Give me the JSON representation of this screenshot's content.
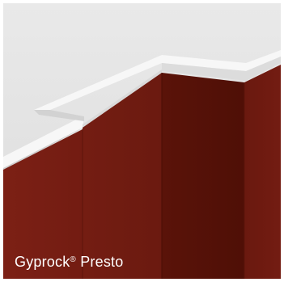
{
  "product": {
    "name": "Gyprock",
    "registered_mark": "®",
    "variant": "Presto"
  },
  "colors": {
    "ceiling": "#e6e6e6",
    "cornice_face": "#fbfbfb",
    "cornice_shadow": "#d4d4d4",
    "wall_light": "#7a1f15",
    "wall_mid": "#6a1a10",
    "wall_dark": "#561108"
  }
}
